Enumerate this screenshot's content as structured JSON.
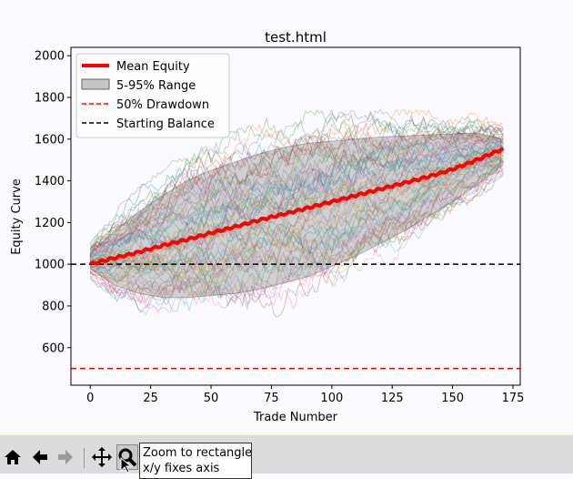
{
  "window": {
    "title": "test.html"
  },
  "chart_data": {
    "type": "line",
    "title": "test.html",
    "xlabel": "Trade Number",
    "ylabel": "Equity Curve",
    "xlim": [
      -8,
      178
    ],
    "ylim": [
      420,
      2040
    ],
    "xticks": [
      0,
      25,
      50,
      75,
      100,
      125,
      150,
      175
    ],
    "yticks": [
      600,
      800,
      1000,
      1200,
      1400,
      1600,
      1800,
      2000
    ],
    "grid": false,
    "legend_position": "top-left",
    "legend": [
      {
        "label": "Mean Equity",
        "style": "line",
        "color": "#ff0000"
      },
      {
        "label": "5-95% Range",
        "style": "patch",
        "color": "#808080"
      },
      {
        "label": "50% Drawdown",
        "style": "dashed",
        "color": "#ff0000"
      },
      {
        "label": "Starting Balance",
        "style": "dashed",
        "color": "#000000"
      }
    ],
    "series": [
      {
        "name": "Mean Equity",
        "x": [
          0,
          10,
          20,
          30,
          40,
          50,
          60,
          70,
          80,
          90,
          100,
          110,
          120,
          130,
          140,
          150,
          160,
          170
        ],
        "values": [
          1000,
          1030,
          1058,
          1090,
          1118,
          1150,
          1180,
          1212,
          1240,
          1270,
          1300,
          1330,
          1360,
          1390,
          1420,
          1455,
          1500,
          1550
        ]
      },
      {
        "name": "5-95% Range",
        "x": [
          0,
          10,
          20,
          30,
          40,
          50,
          60,
          70,
          80,
          90,
          100,
          110,
          120,
          130,
          140,
          150,
          160,
          170
        ],
        "low": [
          980,
          900,
          860,
          840,
          840,
          850,
          860,
          880,
          910,
          940,
          990,
          1040,
          1100,
          1160,
          1230,
          1300,
          1380,
          1470
        ],
        "high": [
          1050,
          1160,
          1250,
          1330,
          1400,
          1450,
          1490,
          1530,
          1560,
          1580,
          1590,
          1600,
          1610,
          1615,
          1620,
          1625,
          1630,
          1600
        ]
      }
    ],
    "reference_lines": [
      {
        "name": "50% Drawdown",
        "y": 500,
        "color": "#ff0000"
      },
      {
        "name": "Starting Balance",
        "y": 1000,
        "color": "#000000"
      }
    ],
    "simulations": {
      "count": 60,
      "steps": 172,
      "start": 1000,
      "end_low": 1480,
      "end_high": 1620,
      "max_seen": 1880,
      "min_seen": 660
    }
  },
  "toolbar": {
    "buttons": [
      {
        "name": "home-icon",
        "label": "Home"
      },
      {
        "name": "back-icon",
        "label": "Back"
      },
      {
        "name": "forward-icon",
        "label": "Forward"
      },
      {
        "name": "pan-icon",
        "label": "Pan"
      },
      {
        "name": "zoom-icon",
        "label": "Zoom"
      }
    ],
    "tooltip_line1": "Zoom to rectangle",
    "tooltip_line2": "x/y fixes axis"
  }
}
